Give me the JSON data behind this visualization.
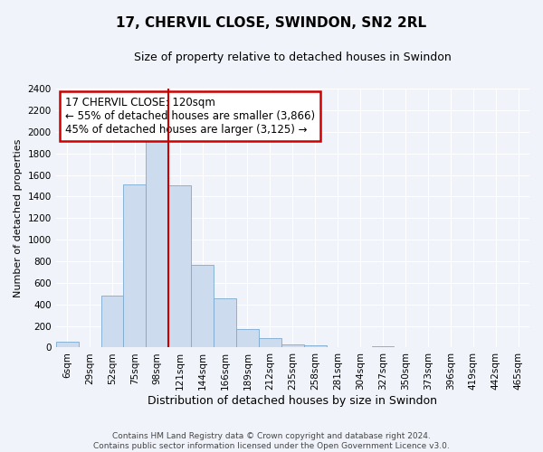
{
  "title": "17, CHERVIL CLOSE, SWINDON, SN2 2RL",
  "subtitle": "Size of property relative to detached houses in Swindon",
  "xlabel": "Distribution of detached houses by size in Swindon",
  "ylabel": "Number of detached properties",
  "bar_color": "#ccdcee",
  "bar_edge_color": "#7aaacf",
  "categories": [
    "6sqm",
    "29sqm",
    "52sqm",
    "75sqm",
    "98sqm",
    "121sqm",
    "144sqm",
    "166sqm",
    "189sqm",
    "212sqm",
    "235sqm",
    "258sqm",
    "281sqm",
    "304sqm",
    "327sqm",
    "350sqm",
    "373sqm",
    "396sqm",
    "419sqm",
    "442sqm",
    "465sqm"
  ],
  "values": [
    55,
    0,
    480,
    1510,
    1920,
    1500,
    770,
    455,
    175,
    90,
    30,
    20,
    0,
    0,
    15,
    0,
    0,
    0,
    0,
    0,
    0
  ],
  "ylim": [
    0,
    2400
  ],
  "yticks": [
    0,
    200,
    400,
    600,
    800,
    1000,
    1200,
    1400,
    1600,
    1800,
    2000,
    2200,
    2400
  ],
  "vline_bin_index": 4,
  "vline_right_edge": true,
  "annotation_title": "17 CHERVIL CLOSE: 120sqm",
  "annotation_line1": "← 55% of detached houses are smaller (3,866)",
  "annotation_line2": "45% of detached houses are larger (3,125) →",
  "vline_color": "#cc0000",
  "annotation_box_facecolor": "#ffffff",
  "annotation_box_edgecolor": "#cc0000",
  "footer_line1": "Contains HM Land Registry data © Crown copyright and database right 2024.",
  "footer_line2": "Contains public sector information licensed under the Open Government Licence v3.0.",
  "fig_facecolor": "#f0f4fa",
  "ax_facecolor": "#f0f4fa",
  "grid_color": "#ffffff",
  "title_fontsize": 11,
  "subtitle_fontsize": 9,
  "ylabel_fontsize": 8,
  "xlabel_fontsize": 9,
  "tick_fontsize": 7.5,
  "annotation_fontsize": 8.5,
  "footer_fontsize": 6.5
}
